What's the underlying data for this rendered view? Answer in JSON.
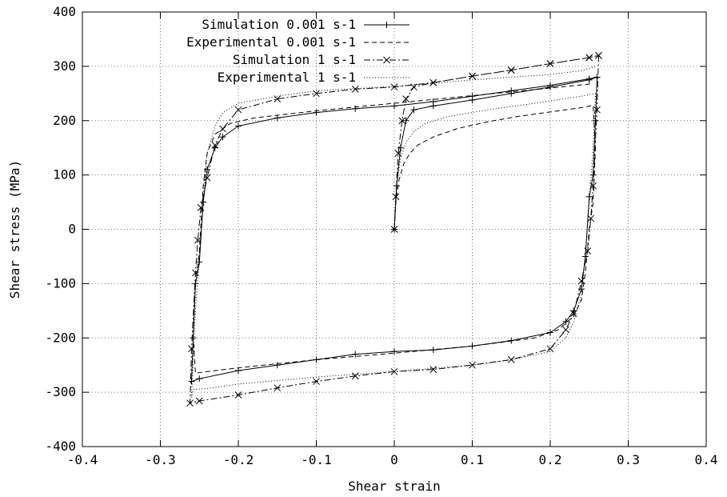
{
  "chart_data": {
    "type": "line",
    "title": "",
    "xlabel": "Shear strain",
    "ylabel": "Shear stress (MPa)",
    "xlim": [
      -0.4,
      0.4
    ],
    "ylim": [
      -400,
      400
    ],
    "x_ticks": [
      -0.4,
      -0.3,
      -0.2,
      -0.1,
      0,
      0.1,
      0.2,
      0.3,
      0.4
    ],
    "y_ticks": [
      -400,
      -300,
      -200,
      -100,
      0,
      100,
      200,
      300,
      400
    ],
    "x_tick_labels": [
      "-0.4",
      "-0.3",
      "-0.2",
      "-0.1",
      "0",
      "0.1",
      "0.2",
      "0.3",
      "0.4"
    ],
    "y_tick_labels": [
      "-400",
      "-300",
      "-200",
      "-100",
      "0",
      "100",
      "200",
      "300",
      "400"
    ],
    "grid": true,
    "legend_position": "top-left",
    "series": [
      {
        "name": "Simulation 0.001 s-1",
        "style": "solid",
        "marker": "plus",
        "color": "#000000",
        "x": [
          0,
          0.003,
          0.008,
          0.015,
          0.025,
          0.05,
          0.1,
          0.15,
          0.2,
          0.25,
          0.26,
          0.258,
          0.255,
          0.25,
          0.245,
          0.24,
          0.23,
          0.22,
          0.2,
          0.15,
          0.1,
          0.05,
          0,
          -0.05,
          -0.1,
          -0.15,
          -0.2,
          -0.25,
          -0.26,
          -0.258,
          -0.255,
          -0.25,
          -0.245,
          -0.24,
          -0.23,
          -0.22,
          -0.2,
          -0.15,
          -0.1,
          -0.05,
          0,
          0.05,
          0.1,
          0.15,
          0.2,
          0.25,
          0.26
        ],
        "y": [
          0,
          80,
          150,
          200,
          220,
          227,
          238,
          250,
          262,
          275,
          280,
          200,
          100,
          60,
          -50,
          -110,
          -150,
          -170,
          -190,
          -205,
          -215,
          -222,
          -225,
          -230,
          -240,
          -250,
          -260,
          -275,
          -280,
          -200,
          -100,
          -60,
          50,
          110,
          150,
          170,
          190,
          205,
          215,
          222,
          227,
          235,
          245,
          255,
          265,
          277,
          280
        ]
      },
      {
        "name": "Experimental 0.001 s-1",
        "style": "dashed",
        "marker": "none",
        "color": "#000000",
        "x": [
          0,
          0.002,
          0.006,
          0.012,
          0.02,
          0.03,
          0.05,
          0.08,
          0.12,
          0.16,
          0.2,
          0.24,
          0.255,
          0.258,
          0.255,
          0.25,
          0.245,
          0.24,
          0.23,
          0.21,
          0.18,
          0.1,
          0,
          -0.1,
          -0.2,
          -0.24,
          -0.255,
          -0.258,
          -0.255,
          -0.25,
          -0.245,
          -0.24,
          -0.23,
          -0.21,
          -0.18,
          -0.1,
          0,
          0.1,
          0.2,
          0.24,
          0.255
        ],
        "y": [
          0,
          50,
          90,
          120,
          140,
          155,
          170,
          185,
          198,
          208,
          216,
          224,
          228,
          150,
          50,
          0,
          -80,
          -130,
          -160,
          -185,
          -200,
          -215,
          -228,
          -240,
          -255,
          -262,
          -265,
          -200,
          -100,
          -40,
          80,
          140,
          175,
          195,
          205,
          218,
          232,
          246,
          260,
          266,
          268
        ]
      },
      {
        "name": "Simulation 1 s-1",
        "style": "dash-dot",
        "marker": "cross",
        "color": "#000000",
        "x": [
          0,
          0.002,
          0.005,
          0.01,
          0.015,
          0.025,
          0.05,
          0.1,
          0.15,
          0.2,
          0.25,
          0.262,
          0.26,
          0.255,
          0.252,
          0.248,
          0.24,
          0.23,
          0.22,
          0.2,
          0.15,
          0.1,
          0.05,
          0,
          -0.05,
          -0.1,
          -0.15,
          -0.2,
          -0.25,
          -0.262,
          -0.26,
          -0.255,
          -0.252,
          -0.248,
          -0.24,
          -0.23,
          -0.22,
          -0.2,
          -0.15,
          -0.1,
          -0.05,
          0,
          0.05,
          0.1,
          0.15,
          0.2,
          0.25,
          0.262
        ],
        "y": [
          0,
          60,
          140,
          200,
          240,
          262,
          270,
          282,
          293,
          305,
          316,
          320,
          220,
          80,
          20,
          -40,
          -95,
          -155,
          -185,
          -220,
          -240,
          -250,
          -258,
          -262,
          -270,
          -280,
          -292,
          -305,
          -316,
          -320,
          -220,
          -80,
          -20,
          40,
          95,
          155,
          185,
          220,
          240,
          250,
          258,
          262,
          270,
          282,
          293,
          305,
          316,
          320
        ]
      },
      {
        "name": "Experimental 1 s-1",
        "style": "dotted",
        "marker": "none",
        "color": "#000000",
        "x": [
          0,
          0.003,
          0.008,
          0.015,
          0.025,
          0.04,
          0.07,
          0.12,
          0.18,
          0.24,
          0.258,
          0.255,
          0.25,
          0.245,
          0.24,
          0.23,
          0.22,
          0.2,
          0.15,
          0.1,
          0,
          -0.1,
          -0.2,
          -0.24,
          -0.258,
          -0.26,
          -0.255,
          -0.25,
          -0.245,
          -0.24,
          -0.23,
          -0.22,
          -0.2,
          -0.15,
          -0.1,
          0,
          0.1,
          0.2,
          0.24,
          0.258
        ],
        "y": [
          0,
          80,
          130,
          160,
          180,
          195,
          208,
          220,
          232,
          245,
          250,
          150,
          50,
          -50,
          -120,
          -170,
          -200,
          -225,
          -240,
          -250,
          -262,
          -272,
          -285,
          -293,
          -295,
          -310,
          -150,
          -50,
          60,
          140,
          190,
          215,
          232,
          245,
          255,
          263,
          275,
          285,
          292,
          300
        ]
      }
    ]
  }
}
